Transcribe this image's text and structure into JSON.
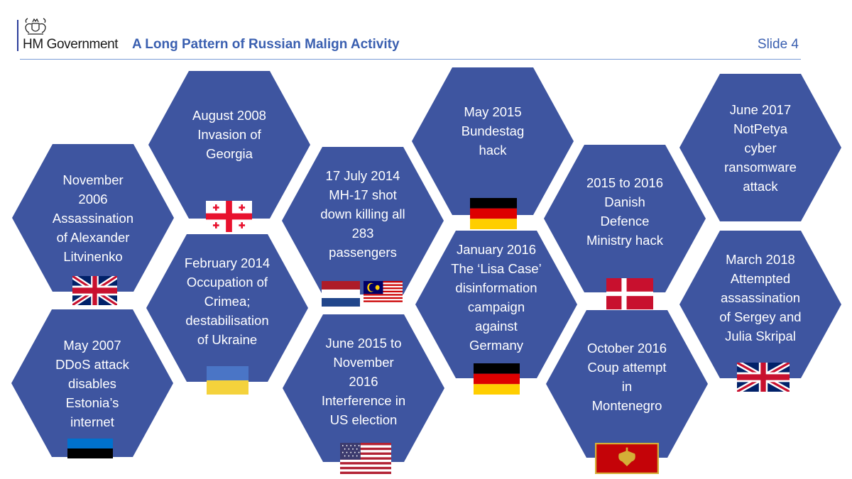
{
  "header": {
    "brand": "HM Government",
    "title": "A Long Pattern of Russian Malign Activity",
    "slide_label": "Slide 4",
    "crest_icon": "royal-coat-of-arms-icon"
  },
  "colors": {
    "hexagon": "#3e55a0",
    "title": "#3a5fb0",
    "rule": "#7a9bd6"
  },
  "events": [
    {
      "label": "November\n2006\nAssassination\nof Alexander\nLitvinenko",
      "flags": [
        "uk-flag-icon"
      ]
    },
    {
      "label": "May 2007\nDDoS attack\ndisables\nEstonia’s\ninternet",
      "flags": [
        "estonia-flag-icon"
      ]
    },
    {
      "label": "August 2008\nInvasion of\nGeorgia",
      "flags": [
        "georgia-flag-icon"
      ]
    },
    {
      "label": "February 2014\nOccupation of\nCrimea;\ndestabilisation\nof Ukraine",
      "flags": [
        "ukraine-flag-icon"
      ]
    },
    {
      "label": "17 July 2014\nMH-17 shot\ndown killing all\n283\npassengers",
      "flags": [
        "netherlands-flag-icon",
        "malaysia-flag-icon"
      ]
    },
    {
      "label": "June 2015 to\nNovember\n2016\nInterference in\nUS election",
      "flags": [
        "usa-flag-icon"
      ]
    },
    {
      "label": "May 2015\nBundestag\nhack",
      "flags": [
        "germany-flag-icon"
      ]
    },
    {
      "label": "January 2016\nThe ‘Lisa Case’\ndisinformation\ncampaign\nagainst\nGermany",
      "flags": [
        "germany-flag-icon"
      ]
    },
    {
      "label": "2015 to 2016\nDanish\nDefence\nMinistry hack",
      "flags": [
        "denmark-flag-icon"
      ]
    },
    {
      "label": "October 2016\nCoup attempt\nin\nMontenegro",
      "flags": [
        "montenegro-flag-icon"
      ]
    },
    {
      "label": "June 2017\nNotPetya\ncyber\nransomware\nattack",
      "flags": []
    },
    {
      "label": "March 2018\nAttempted\nassassination\nof Sergey and\nJulia Skripal",
      "flags": [
        "uk-flag-icon"
      ]
    }
  ]
}
